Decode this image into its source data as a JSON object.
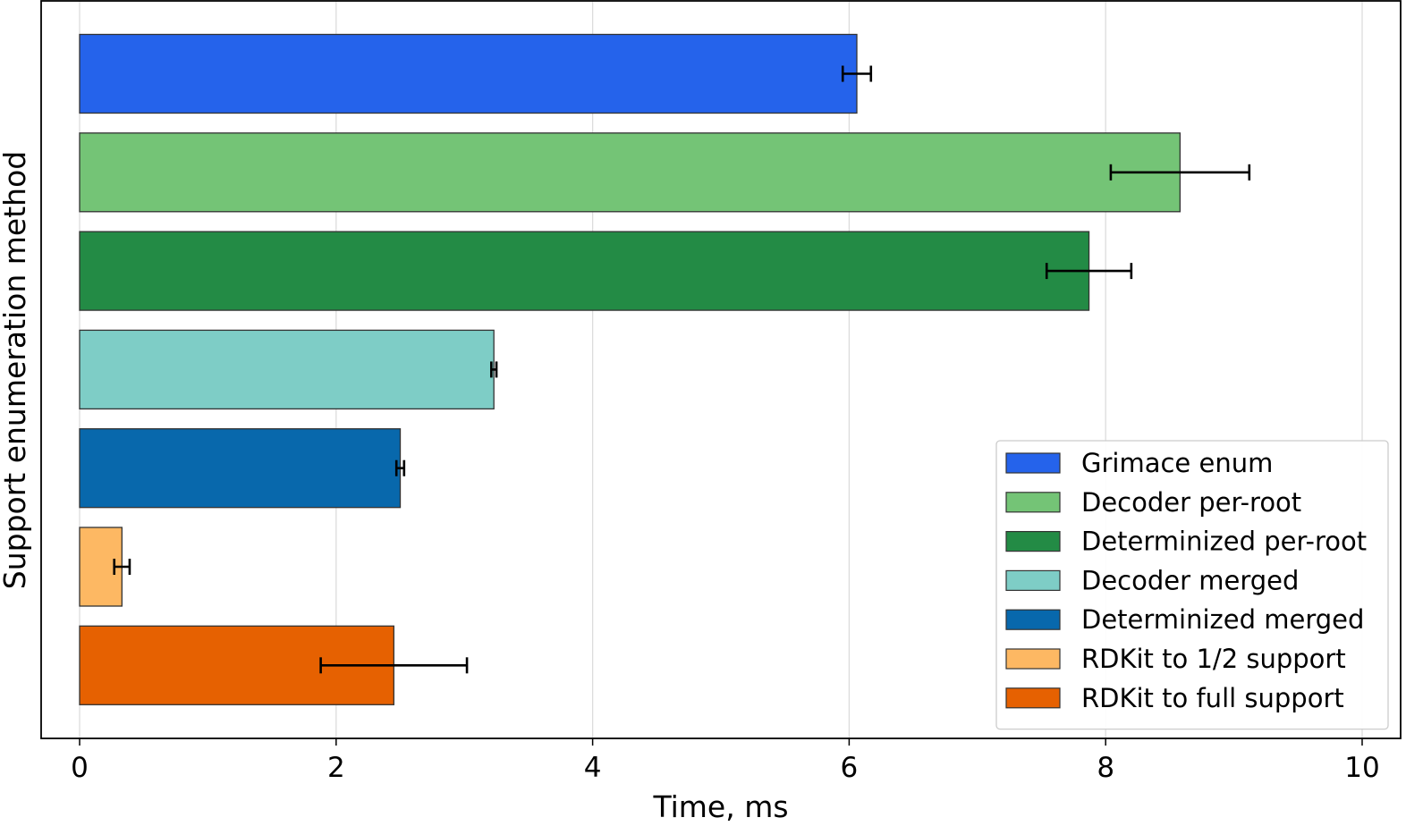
{
  "chart_data": {
    "type": "bar",
    "orientation": "horizontal",
    "xlabel": "Time, ms",
    "ylabel": "Support enumeration method",
    "xlim": [
      -0.3,
      10.3
    ],
    "xticks": [
      0,
      2,
      4,
      6,
      8,
      10
    ],
    "grid": "vertical",
    "legend_position": "bottom-right",
    "series": [
      {
        "name": "Grimace enum",
        "value": 6.06,
        "error": 0.11,
        "color": "#2563eb"
      },
      {
        "name": "Decoder per-root",
        "value": 8.58,
        "error": 0.54,
        "color": "#74c476"
      },
      {
        "name": "Determinized per-root",
        "value": 7.87,
        "error": 0.33,
        "color": "#238b45"
      },
      {
        "name": "Decoder merged",
        "value": 3.23,
        "error": 0.02,
        "color": "#7ecdc6"
      },
      {
        "name": "Determinized merged",
        "value": 2.5,
        "error": 0.03,
        "color": "#0868ac"
      },
      {
        "name": "RDKit to 1/2 support",
        "value": 0.33,
        "error": 0.06,
        "color": "#fdb863"
      },
      {
        "name": "RDKit to full support",
        "value": 2.45,
        "error": 0.57,
        "color": "#e66101"
      }
    ]
  }
}
